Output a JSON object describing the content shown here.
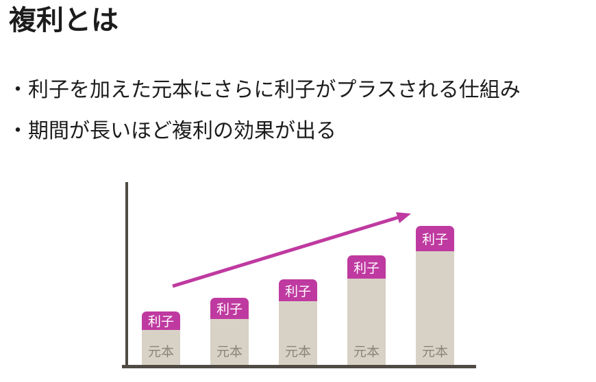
{
  "slide": {
    "title": "複利とは",
    "bullets": [
      {
        "text": "・利子を加えた元本にさらに利子がプラスされる仕組み"
      },
      {
        "text": "・期間が長いほど複利の効果が出る"
      }
    ]
  },
  "chart_data": {
    "type": "bar",
    "stacked": true,
    "title": "",
    "xlabel": "",
    "ylabel": "",
    "stack_labels": {
      "interest": "利子",
      "principal": "元本"
    },
    "bars": [
      {
        "principal": 51,
        "interest": 27
      },
      {
        "principal": 67,
        "interest": 31
      },
      {
        "principal": 93,
        "interest": 32
      },
      {
        "principal": 126,
        "interest": 34
      },
      {
        "principal": 166,
        "interest": 37
      }
    ],
    "annotations": [
      "upward-trend-arrow"
    ],
    "colors": {
      "interest": "#bf3aa0",
      "principal": "#d8d2c6",
      "principal_text": "#8b8379",
      "axis": "#4f4a43",
      "arrow": "#bf3aa0",
      "text": "#1c1c1c"
    }
  }
}
